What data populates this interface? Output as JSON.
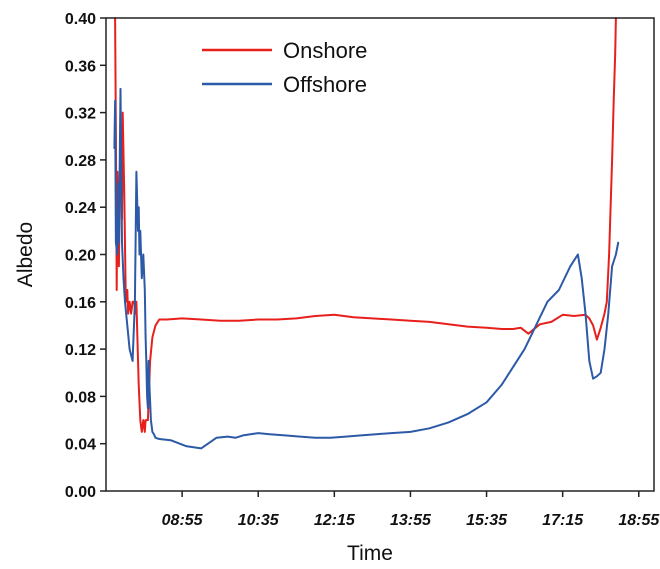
{
  "chart_data": {
    "type": "line",
    "title": "",
    "xlabel": "Time",
    "ylabel": "Albedo",
    "ylim": [
      0,
      0.4
    ],
    "xlim": [
      "07:15",
      "19:15"
    ],
    "x_ticks": [
      "08:55",
      "10:35",
      "12:15",
      "13:55",
      "15:35",
      "17:15",
      "18:55"
    ],
    "y_ticks": [
      "0.00",
      "0.04",
      "0.08",
      "0.12",
      "0.16",
      "0.20",
      "0.24",
      "0.28",
      "0.32",
      "0.36",
      "0.40"
    ],
    "grid": false,
    "legend": "top-left",
    "series": [
      {
        "name": "Onshore",
        "color": "#e8201c",
        "x": [
          "07:27",
          "07:28",
          "07:29",
          "07:30",
          "07:32",
          "07:34",
          "07:36",
          "07:37",
          "07:39",
          "07:41",
          "07:43",
          "07:44",
          "07:46",
          "07:48",
          "07:50",
          "07:52",
          "07:54",
          "07:55",
          "07:58",
          "08:00",
          "08:02",
          "08:04",
          "08:06",
          "08:07",
          "08:10",
          "08:13",
          "08:16",
          "08:20",
          "08:25",
          "08:35",
          "08:55",
          "09:20",
          "09:45",
          "10:10",
          "10:35",
          "11:00",
          "11:25",
          "11:50",
          "12:15",
          "12:40",
          "13:05",
          "13:30",
          "13:55",
          "14:20",
          "14:45",
          "15:10",
          "15:35",
          "15:55",
          "16:10",
          "16:20",
          "16:30",
          "16:45",
          "17:00",
          "17:15",
          "17:30",
          "17:45",
          "17:50",
          "17:55",
          "18:00",
          "18:05",
          "18:10",
          "18:13",
          "18:16",
          "18:18",
          "18:20",
          "18:22",
          "18:24",
          "18:25"
        ],
        "values": [
          0.4,
          0.3,
          0.17,
          0.27,
          0.19,
          0.31,
          0.23,
          0.32,
          0.25,
          0.16,
          0.17,
          0.15,
          0.16,
          0.15,
          0.16,
          0.16,
          0.15,
          0.16,
          0.09,
          0.06,
          0.05,
          0.06,
          0.05,
          0.06,
          0.06,
          0.11,
          0.13,
          0.14,
          0.145,
          0.145,
          0.146,
          0.145,
          0.144,
          0.144,
          0.145,
          0.145,
          0.146,
          0.148,
          0.149,
          0.147,
          0.146,
          0.145,
          0.144,
          0.143,
          0.141,
          0.139,
          0.138,
          0.137,
          0.137,
          0.138,
          0.133,
          0.141,
          0.143,
          0.149,
          0.148,
          0.149,
          0.146,
          0.14,
          0.128,
          0.138,
          0.15,
          0.16,
          0.2,
          0.24,
          0.28,
          0.33,
          0.37,
          0.4
        ]
      },
      {
        "name": "Offshore",
        "color": "#2d5aa7",
        "x": [
          "07:26",
          "07:27",
          "07:28",
          "07:30",
          "07:31",
          "07:32",
          "07:34",
          "07:35",
          "07:36",
          "07:38",
          "07:40",
          "07:43",
          "07:46",
          "07:50",
          "07:53",
          "07:55",
          "07:57",
          "07:58",
          "07:59",
          "08:00",
          "08:02",
          "08:04",
          "08:06",
          "08:07",
          "08:08",
          "08:09",
          "08:10",
          "08:11",
          "08:12",
          "08:14",
          "08:16",
          "08:18",
          "08:20",
          "08:25",
          "08:40",
          "09:00",
          "09:20",
          "09:40",
          "09:55",
          "10:05",
          "10:15",
          "10:25",
          "10:35",
          "10:50",
          "11:10",
          "11:30",
          "11:50",
          "12:10",
          "12:30",
          "12:50",
          "13:10",
          "13:30",
          "13:55",
          "14:20",
          "14:45",
          "15:10",
          "15:35",
          "15:55",
          "16:10",
          "16:25",
          "16:40",
          "16:55",
          "17:10",
          "17:25",
          "17:35",
          "17:40",
          "17:45",
          "17:50",
          "17:55",
          "18:00",
          "18:05",
          "18:10",
          "18:15",
          "18:20",
          "18:25",
          "18:28"
        ],
        "values": [
          0.29,
          0.33,
          0.21,
          0.2,
          0.26,
          0.21,
          0.34,
          0.28,
          0.21,
          0.18,
          0.16,
          0.14,
          0.12,
          0.11,
          0.16,
          0.27,
          0.22,
          0.24,
          0.2,
          0.22,
          0.18,
          0.2,
          0.17,
          0.13,
          0.11,
          0.08,
          0.07,
          0.11,
          0.09,
          0.06,
          0.05,
          0.048,
          0.045,
          0.044,
          0.043,
          0.038,
          0.036,
          0.045,
          0.046,
          0.045,
          0.047,
          0.048,
          0.049,
          0.048,
          0.047,
          0.046,
          0.045,
          0.045,
          0.046,
          0.047,
          0.048,
          0.049,
          0.05,
          0.053,
          0.058,
          0.065,
          0.075,
          0.09,
          0.105,
          0.12,
          0.14,
          0.16,
          0.17,
          0.19,
          0.2,
          0.18,
          0.15,
          0.11,
          0.095,
          0.097,
          0.1,
          0.12,
          0.15,
          0.19,
          0.2,
          0.21
        ]
      }
    ]
  }
}
